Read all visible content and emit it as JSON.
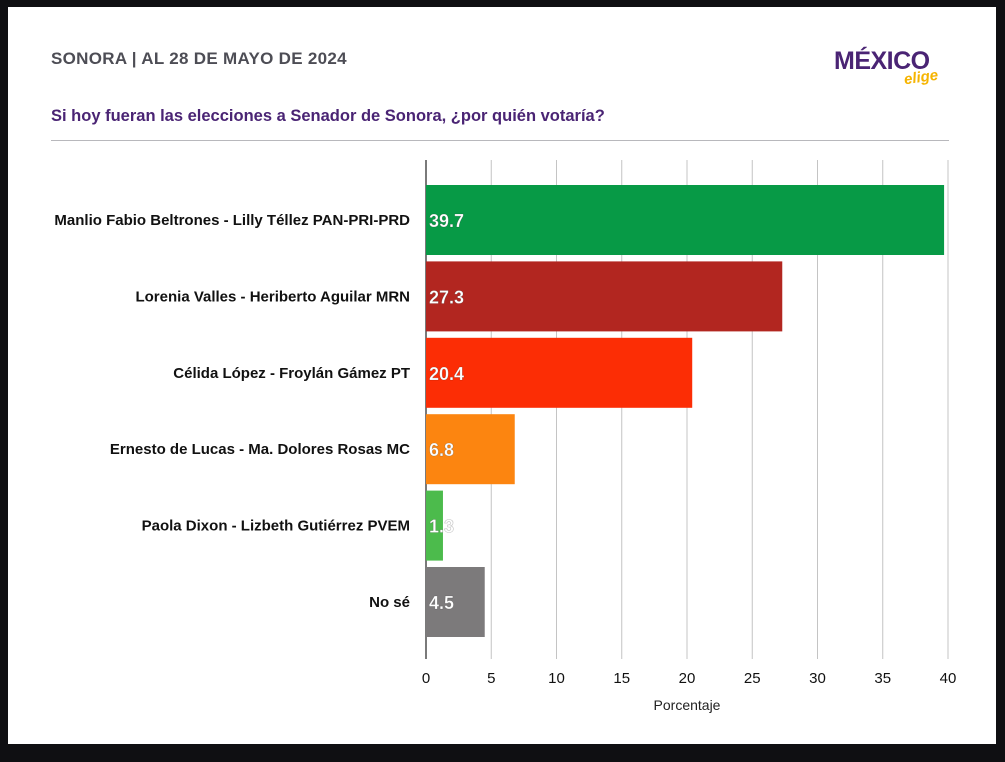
{
  "header": {
    "title": "SONORA | AL 28 DE MAYO DE 2024",
    "question": "Si hoy fueran las elecciones a Senador de Sonora, ¿por quién votaría?"
  },
  "logo": {
    "main": "MÉXICO",
    "sub": "elige"
  },
  "chart_data": {
    "type": "bar",
    "orientation": "horizontal",
    "categories": [
      "Manlio Fabio Beltrones - Lilly Téllez PAN-PRI-PRD",
      "Lorenia Valles - Heriberto Aguilar MRN",
      "Célida López - Froylán Gámez PT",
      "Ernesto de Lucas - Ma. Dolores Rosas MC",
      "Paola Dixon - Lizbeth Gutiérrez PVEM",
      "No sé"
    ],
    "values": [
      39.7,
      27.3,
      20.4,
      6.8,
      1.3,
      4.5
    ],
    "value_labels": [
      "39.7",
      "27.3",
      "20.4",
      "6.8",
      "1.3",
      "4.5"
    ],
    "colors": [
      "#079a46",
      "#b22620",
      "#fc2d05",
      "#fc8510",
      "#4cbb4c",
      "#7c7a7b"
    ],
    "xlabel": "Porcentaje",
    "xlim": [
      0,
      40
    ],
    "xticks": [
      0,
      5,
      10,
      15,
      20,
      25,
      30,
      35,
      40
    ],
    "grid": true
  }
}
